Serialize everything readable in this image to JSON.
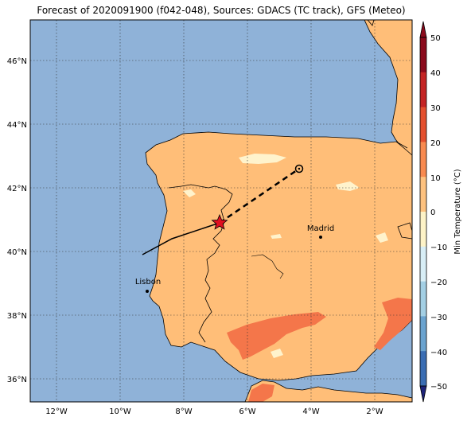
{
  "title": "Forecast of 2020091900 (f042-048), Sources: GDACS (TC track), GFS (Meteo)",
  "colorbar": {
    "label": "Min Temperature (°C)",
    "ticks": [
      "50",
      "40",
      "30",
      "20",
      "10",
      "0",
      "−10",
      "−20",
      "−30",
      "−40",
      "−50"
    ],
    "colors": [
      "#8b0a1c",
      "#c42424",
      "#e4502f",
      "#f88a50",
      "#fec27f",
      "#fef3c7",
      "#d8eef6",
      "#a3cfe4",
      "#6aa3cf",
      "#3a6db3",
      "#2c3f94",
      "#1d237a"
    ]
  },
  "map": {
    "lat_labels": [
      "46°N",
      "44°N",
      "42°N",
      "40°N",
      "38°N",
      "36°N"
    ],
    "lon_labels": [
      "12°W",
      "10°W",
      "8°W",
      "6°W",
      "4°W",
      "2°W"
    ],
    "ocean_color": "#8fb2d8",
    "land_color": "#ffbe78",
    "warm_color": "#f4764a",
    "cool_color": "#fff3cc"
  },
  "cities": [
    {
      "name": "Madrid"
    },
    {
      "name": "Lisbon"
    }
  ]
}
